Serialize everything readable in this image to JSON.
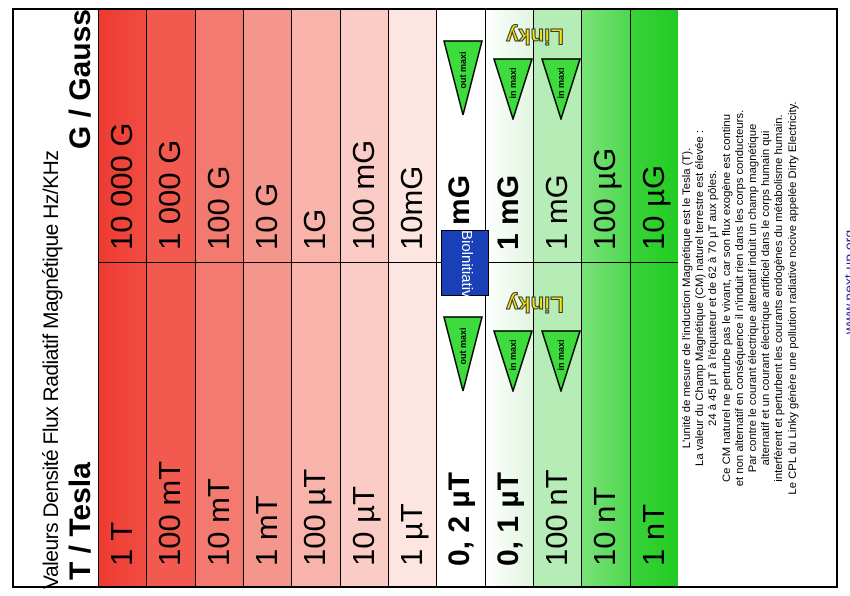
{
  "header": {
    "title": "Valeurs Densité Flux Radiatif Magnétique Hz/KHz",
    "unit_tesla": "T / Tesla",
    "unit_gauss": "G / Gauss"
  },
  "columns": [
    {
      "gauss": "10 000 G",
      "tesla": "1 T",
      "color": "#ef3d35"
    },
    {
      "gauss": "1 000 G",
      "tesla": "100 mT",
      "color": "#f25a4f"
    },
    {
      "gauss": "100 G",
      "tesla": "10 mT",
      "color": "#f47a6f"
    },
    {
      "gauss": "10 G",
      "tesla": "1 mT",
      "color": "#f5968c"
    },
    {
      "gauss": "1G",
      "tesla": "100 µT",
      "color": "#f8b3ab"
    },
    {
      "gauss": "100 mG",
      "tesla": "10 µT",
      "color": "#fbccc6"
    },
    {
      "gauss": "10mG",
      "tesla": "1 µT",
      "color": "#fde6e2"
    },
    {
      "gauss": "2 mG",
      "tesla": "0, 2 µT",
      "color": "#ffffff"
    },
    {
      "gauss": "1 mG",
      "tesla": "0, 1 µT",
      "color": "#e6f7e6"
    },
    {
      "gauss": "1 mG",
      "tesla": "100 nT",
      "color": "#b6ecb6"
    },
    {
      "gauss": "100 µG",
      "tesla": "10 nT",
      "color": "#5fdc5f"
    },
    {
      "gauss": "10 µG",
      "tesla": "1 nT",
      "color": "#22cc22"
    }
  ],
  "badge": "Biolnitiative",
  "linky": "Linky",
  "markers": {
    "out_maxi": "out maxi",
    "in_maxi": "in maxi"
  },
  "info_lines": [
    "L'unité de mesure de l'induction Magnétique est le Tesla (T).",
    "La valeur du Champ Magnétique (CM) naturel terrestre est élevée :",
    "24 à 45 µT à l'équateur et de 62 à 70 µT aux pôles.",
    "Ce CM naturel ne perturbe pas le vivant, car son flux exogène est continu",
    "et non alternatif en conséquence il n'induit rien dans les corps conducteurs.",
    "Par contre le courant électrique alternatif induit un champ magnétique",
    "alternatif et un courant électrique artificiel dans le corps humain qui",
    "interfèrent et perturbent les courants endogènes du métabolisme humain.",
    "Le CPL du Linky génère une pollution radiative nocive appelée Dirty Electricity."
  ],
  "website": "www.next-up.org",
  "colors": {
    "badge_bg": "#1a40b8",
    "linky_yellow": "#f5e60a",
    "triangle_green": "#3cdc3c",
    "website_blue": "#1a2fa0"
  }
}
